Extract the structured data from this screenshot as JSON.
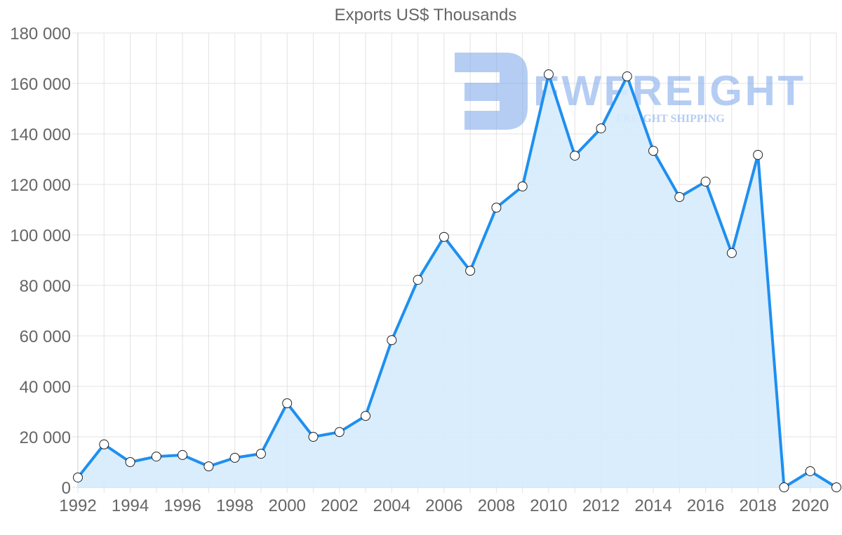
{
  "chart_data": {
    "type": "line",
    "title": "Exports US$ Thousands",
    "xlabel": "",
    "ylabel": "",
    "ylim": [
      0,
      180000
    ],
    "yticks": [
      0,
      20000,
      40000,
      60000,
      80000,
      100000,
      120000,
      140000,
      160000,
      180000
    ],
    "ytick_labels": [
      "0",
      "20 000",
      "40 000",
      "60 000",
      "80 000",
      "100 000",
      "120 000",
      "140 000",
      "160 000",
      "180 000"
    ],
    "xtick_labels": [
      "1992",
      "1994",
      "1996",
      "1998",
      "2000",
      "2002",
      "2004",
      "2006",
      "2008",
      "2010",
      "2012",
      "2014",
      "2016",
      "2018",
      "2020"
    ],
    "grid": true,
    "legend": null,
    "fill": true,
    "x": [
      1992,
      1993,
      1994,
      1995,
      1996,
      1997,
      1998,
      1999,
      2000,
      2001,
      2002,
      2003,
      2004,
      2005,
      2006,
      2007,
      2008,
      2009,
      2010,
      2011,
      2012,
      2013,
      2014,
      2015,
      2016,
      2017,
      2018,
      2019,
      2020,
      2021
    ],
    "series": [
      {
        "name": "Exports US$ Thousands",
        "color": "#1e8ff0",
        "fill_color": "#d6ebfc",
        "values": [
          3900,
          17000,
          10000,
          12200,
          12800,
          8300,
          11700,
          13300,
          33300,
          20000,
          21900,
          28300,
          58300,
          82200,
          99200,
          85800,
          110800,
          119200,
          163600,
          131400,
          142200,
          162800,
          133300,
          115000,
          121100,
          92800,
          131700,
          0,
          6400,
          0
        ]
      }
    ],
    "watermark": {
      "brand": "FWFREIGHT",
      "tagline": "FREIGHT SHIPPING"
    }
  }
}
